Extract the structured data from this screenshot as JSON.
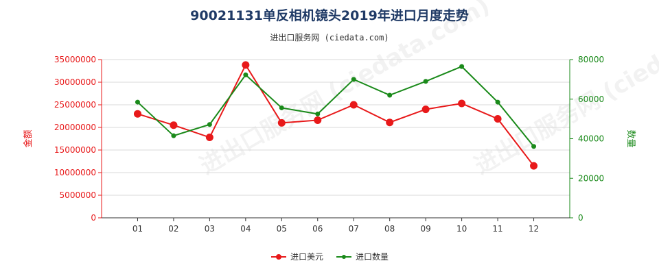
{
  "chart_data": {
    "type": "line",
    "title": "90021131单反相机镜头2019年进口月度走势",
    "subtitle": "进出口服务网 (ciedata.com)",
    "categories": [
      "01",
      "02",
      "03",
      "04",
      "05",
      "06",
      "07",
      "08",
      "09",
      "10",
      "11",
      "12"
    ],
    "series": [
      {
        "name": "进口美元",
        "axis": "left",
        "color": "#e8191a",
        "values": [
          23000000,
          20500000,
          17800000,
          33800000,
          21000000,
          21600000,
          25000000,
          21100000,
          24000000,
          25300000,
          21900000,
          11500000
        ]
      },
      {
        "name": "进口数量",
        "axis": "right",
        "color": "#1a8a1a",
        "values": [
          58500,
          41500,
          47200,
          72300,
          55600,
          52500,
          70000,
          62000,
          69000,
          76500,
          58500,
          36100
        ]
      }
    ],
    "y_left": {
      "label": "金额",
      "range": [
        0,
        35000000
      ],
      "ticks": [
        "0",
        "5000000",
        "10000000",
        "15000000",
        "20000000",
        "25000000",
        "30000000",
        "35000000"
      ],
      "color": "#e8191a"
    },
    "y_right": {
      "label": "数量",
      "range": [
        0,
        80000
      ],
      "ticks": [
        "0",
        "20000",
        "40000",
        "60000",
        "80000"
      ],
      "color": "#1a8a1a"
    },
    "grid": "horizontal",
    "legend": "bottom-center"
  }
}
